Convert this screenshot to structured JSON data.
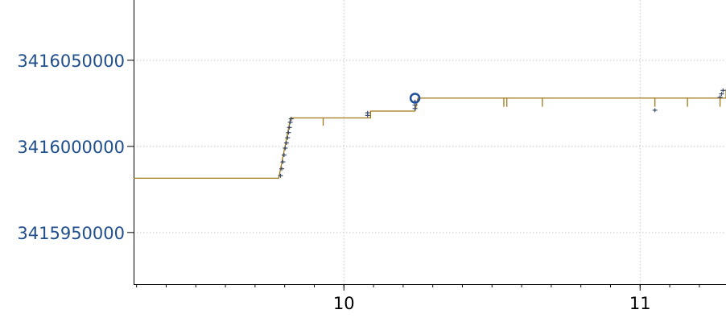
{
  "chart_data": {
    "type": "line",
    "title": "",
    "xlabel": "",
    "ylabel": "",
    "xlim": [
      9.29,
      11.29
    ],
    "ylim": [
      3415920000,
      3416085000
    ],
    "grid": true,
    "x_ticks": [
      {
        "value": 10,
        "label": "10"
      },
      {
        "value": 11,
        "label": "11"
      }
    ],
    "y_ticks": [
      {
        "value": 3416050000,
        "label": "3416050000"
      },
      {
        "value": 3416000000,
        "label": "3416000000"
      },
      {
        "value": 3415950000,
        "label": "3415950000"
      }
    ],
    "colors": {
      "line": "#a07818",
      "marker": "#3a4a6a",
      "highlight": "#1f4e9c",
      "ytick_text": "#1f4e8c",
      "xtick_text": "#000000",
      "grid": "#c8c8c8"
    },
    "series": [
      {
        "type": "step",
        "points": [
          {
            "x": 9.29,
            "y": 3415981500
          },
          {
            "x": 9.78,
            "y": 3415981500
          },
          {
            "x": 9.82,
            "y": 3416016500
          },
          {
            "x": 10.09,
            "y": 3416016500
          },
          {
            "x": 10.09,
            "y": 3416020500
          },
          {
            "x": 10.24,
            "y": 3416020500
          },
          {
            "x": 10.25,
            "y": 3416028000
          },
          {
            "x": 11.29,
            "y": 3416028000
          },
          {
            "x": 11.29,
            "y": 3416033000
          }
        ]
      },
      {
        "type": "scatter",
        "marker": "plus",
        "points": [
          {
            "x": 9.786,
            "y": 3415983000
          },
          {
            "x": 9.79,
            "y": 3415987000
          },
          {
            "x": 9.794,
            "y": 3415991000
          },
          {
            "x": 9.798,
            "y": 3415995000
          },
          {
            "x": 9.802,
            "y": 3415999000
          },
          {
            "x": 9.806,
            "y": 3416002000
          },
          {
            "x": 9.81,
            "y": 3416005000
          },
          {
            "x": 9.813,
            "y": 3416008000
          },
          {
            "x": 9.816,
            "y": 3416011000
          },
          {
            "x": 9.819,
            "y": 3416014000
          },
          {
            "x": 9.822,
            "y": 3416016000
          },
          {
            "x": 10.08,
            "y": 3416018000
          },
          {
            "x": 10.08,
            "y": 3416019500
          },
          {
            "x": 10.24,
            "y": 3416022000
          },
          {
            "x": 10.24,
            "y": 3416024000
          },
          {
            "x": 10.24,
            "y": 3416026000
          },
          {
            "x": 11.05,
            "y": 3416021000
          },
          {
            "x": 11.27,
            "y": 3416028500
          },
          {
            "x": 11.275,
            "y": 3416030500
          },
          {
            "x": 11.28,
            "y": 3416032500
          }
        ]
      },
      {
        "type": "drop",
        "points": [
          {
            "x": 9.93,
            "y": 3416016500,
            "y2": 3416012000
          },
          {
            "x": 10.54,
            "y": 3416028000,
            "y2": 3416023000
          },
          {
            "x": 10.55,
            "y": 3416028000,
            "y2": 3416023000
          },
          {
            "x": 10.67,
            "y": 3416028000,
            "y2": 3416023000
          },
          {
            "x": 11.05,
            "y": 3416028000,
            "y2": 3416023000
          },
          {
            "x": 11.16,
            "y": 3416028000,
            "y2": 3416023000
          },
          {
            "x": 11.27,
            "y": 3416028000,
            "y2": 3416023000
          }
        ]
      },
      {
        "type": "highlight",
        "marker": "circle",
        "points": [
          {
            "x": 10.24,
            "y": 3416028000
          }
        ]
      }
    ]
  }
}
